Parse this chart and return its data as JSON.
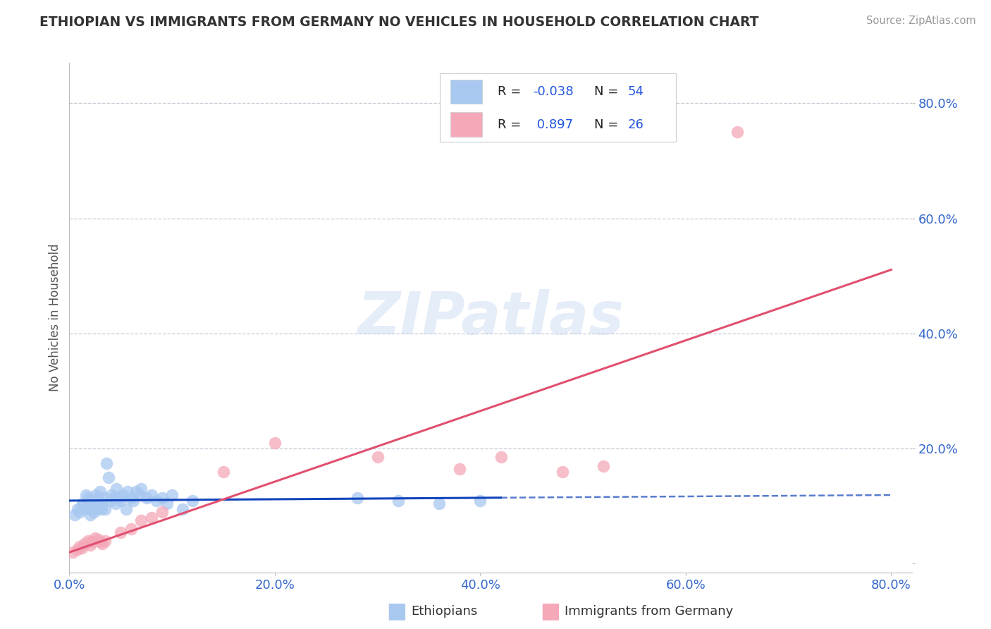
{
  "title": "ETHIOPIAN VS IMMIGRANTS FROM GERMANY NO VEHICLES IN HOUSEHOLD CORRELATION CHART",
  "source_text": "Source: ZipAtlas.com",
  "ylabel": "No Vehicles in Household",
  "watermark": "ZIPatlas",
  "xlim": [
    0.0,
    0.82
  ],
  "ylim": [
    -0.015,
    0.87
  ],
  "legend_r_blue": "-0.038",
  "legend_n_blue": "54",
  "legend_r_pink": "0.897",
  "legend_n_pink": "26",
  "blue_color": "#A8C8F0",
  "pink_color": "#F4A8B8",
  "blue_line_color": "#1144BB",
  "pink_line_color": "#E05070",
  "grid_color": "#BBBBCC",
  "background_color": "#FFFFFF",
  "eth_x": [
    0.005,
    0.008,
    0.01,
    0.012,
    0.013,
    0.015,
    0.016,
    0.017,
    0.018,
    0.02,
    0.02,
    0.022,
    0.022,
    0.023,
    0.024,
    0.025,
    0.026,
    0.027,
    0.028,
    0.03,
    0.03,
    0.031,
    0.032,
    0.033,
    0.035,
    0.036,
    0.038,
    0.04,
    0.041,
    0.043,
    0.045,
    0.046,
    0.048,
    0.05,
    0.052,
    0.055,
    0.057,
    0.06,
    0.062,
    0.065,
    0.068,
    0.07,
    0.075,
    0.08,
    0.085,
    0.09,
    0.095,
    0.1,
    0.11,
    0.12,
    0.28,
    0.32,
    0.36,
    0.4
  ],
  "eth_y": [
    0.085,
    0.095,
    0.09,
    0.1,
    0.105,
    0.095,
    0.12,
    0.1,
    0.115,
    0.11,
    0.085,
    0.095,
    0.1,
    0.11,
    0.09,
    0.105,
    0.12,
    0.095,
    0.115,
    0.1,
    0.125,
    0.095,
    0.105,
    0.115,
    0.095,
    0.175,
    0.15,
    0.11,
    0.12,
    0.115,
    0.105,
    0.13,
    0.115,
    0.11,
    0.12,
    0.095,
    0.125,
    0.115,
    0.11,
    0.125,
    0.12,
    0.13,
    0.115,
    0.12,
    0.11,
    0.115,
    0.105,
    0.12,
    0.095,
    0.11,
    0.115,
    0.11,
    0.105,
    0.11
  ],
  "ger_x": [
    0.003,
    0.008,
    0.01,
    0.012,
    0.015,
    0.018,
    0.02,
    0.022,
    0.025,
    0.028,
    0.03,
    0.032,
    0.035,
    0.05,
    0.06,
    0.07,
    0.08,
    0.09,
    0.15,
    0.2,
    0.3,
    0.38,
    0.42,
    0.48,
    0.52,
    0.65
  ],
  "ger_y": [
    0.02,
    0.025,
    0.03,
    0.028,
    0.035,
    0.04,
    0.032,
    0.038,
    0.045,
    0.042,
    0.038,
    0.035,
    0.04,
    0.055,
    0.06,
    0.075,
    0.08,
    0.09,
    0.16,
    0.21,
    0.185,
    0.165,
    0.185,
    0.16,
    0.17,
    0.75
  ]
}
